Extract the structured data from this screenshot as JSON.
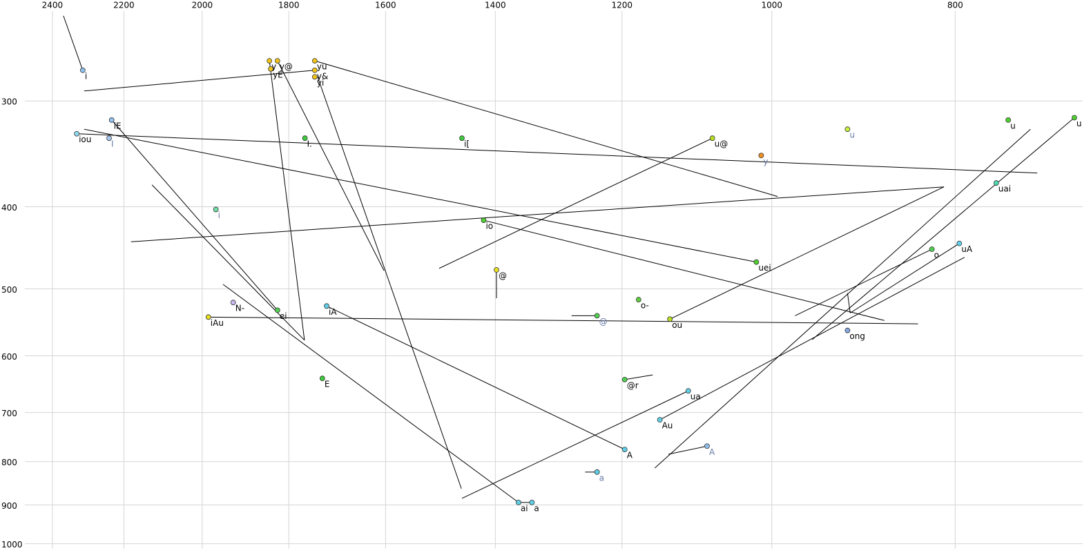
{
  "chart_data": {
    "type": "scatter",
    "xscale": "log",
    "yscale": "log",
    "xlim": [
      2558,
      685
    ],
    "ylim": [
      1014,
      228
    ],
    "xticks": [
      2400,
      2200,
      2000,
      1800,
      1600,
      1400,
      1200,
      1000,
      800
    ],
    "yticks": [
      300,
      400,
      500,
      600,
      700,
      800,
      900,
      1000
    ],
    "grid": true,
    "points": [
      {
        "label": "i",
        "x": 2313,
        "y": 276,
        "color": "#8fc1ee"
      },
      {
        "label": "y",
        "x": 1843,
        "y": 269,
        "color": "#f0c419"
      },
      {
        "label": "y@",
        "x": 1825,
        "y": 269,
        "color": "#f0c419"
      },
      {
        "label": "yE",
        "x": 1840,
        "y": 275,
        "color": "#f0c419"
      },
      {
        "label": "yu",
        "x": 1744,
        "y": 269,
        "color": "#f0c419"
      },
      {
        "label": "y&",
        "x": 1744,
        "y": 276,
        "color": "#f0c419"
      },
      {
        "label": "yi",
        "x": 1744,
        "y": 281,
        "color": "#f0c419"
      },
      {
        "label": "iE",
        "x": 2233,
        "y": 316,
        "color": "#8fc1ee"
      },
      {
        "label": "iou",
        "x": 2330,
        "y": 328,
        "color": "#8fd8ee"
      },
      {
        "label": "I",
        "x": 2240,
        "y": 332,
        "color": "#a8c8f0",
        "label_color": "#6a7aa8"
      },
      {
        "label": "I.",
        "x": 1765,
        "y": 332,
        "color": "#3ccc3c"
      },
      {
        "label": "i[",
        "x": 1458,
        "y": 332,
        "color": "#3ccc3c"
      },
      {
        "label": "u@",
        "x": 1075,
        "y": 332,
        "color": "#b8e020"
      },
      {
        "label": "u",
        "x": 912,
        "y": 324,
        "color": "#c8f040",
        "label_color": "#6a7aa8"
      },
      {
        "label": "y",
        "x": 1013,
        "y": 348,
        "color": "#f09020",
        "label_color": "#6a7aa8"
      },
      {
        "label": "u",
        "x": 750,
        "y": 316,
        "color": "#50d030"
      },
      {
        "label": "u",
        "x": 692,
        "y": 314,
        "color": "#50d030"
      },
      {
        "label": "uai",
        "x": 761,
        "y": 375,
        "color": "#50d8b0"
      },
      {
        "label": "i",
        "x": 1967,
        "y": 403,
        "color": "#70e0a8",
        "label_color": "#6a7aa8"
      },
      {
        "label": "io",
        "x": 1420,
        "y": 415,
        "color": "#50d030"
      },
      {
        "label": "uei",
        "x": 1019,
        "y": 465,
        "color": "#50d030"
      },
      {
        "label": "@",
        "x": 1398,
        "y": 475,
        "color": "#e8e020"
      },
      {
        "label": "o",
        "x": 823,
        "y": 449,
        "color": "#50d050"
      },
      {
        "label": "uA",
        "x": 796,
        "y": 442,
        "color": "#60d0e8"
      },
      {
        "label": "N-",
        "x": 1926,
        "y": 519,
        "color": "#c8b8f0"
      },
      {
        "label": "ei",
        "x": 1825,
        "y": 530,
        "color": "#50d050"
      },
      {
        "label": "iA",
        "x": 1719,
        "y": 524,
        "color": "#60d0e8"
      },
      {
        "label": "o-",
        "x": 1176,
        "y": 515,
        "color": "#60d040"
      },
      {
        "label": "@",
        "x": 1237,
        "y": 538,
        "color": "#50d050",
        "label_color": "#6a7aa8"
      },
      {
        "label": "ou",
        "x": 1132,
        "y": 543,
        "color": "#b8e020"
      },
      {
        "label": "iAu",
        "x": 1985,
        "y": 540,
        "color": "#e8e020"
      },
      {
        "label": "ong",
        "x": 912,
        "y": 560,
        "color": "#88a8e0"
      },
      {
        "label": "E",
        "x": 1728,
        "y": 638,
        "color": "#3ccc3c"
      },
      {
        "label": "@r",
        "x": 1196,
        "y": 640,
        "color": "#50d050"
      },
      {
        "label": "ua",
        "x": 1107,
        "y": 660,
        "color": "#60d0e8"
      },
      {
        "label": "Au",
        "x": 1146,
        "y": 714,
        "color": "#60d0e8"
      },
      {
        "label": "A",
        "x": 1196,
        "y": 774,
        "color": "#60d0e8"
      },
      {
        "label": "A",
        "x": 1082,
        "y": 767,
        "color": "#8fc1ee",
        "label_color": "#6a7aa8"
      },
      {
        "label": "a",
        "x": 1237,
        "y": 823,
        "color": "#60d0e8",
        "label_color": "#6a7aa8"
      },
      {
        "label": "ai",
        "x": 1361,
        "y": 894,
        "color": "#60d0e8"
      },
      {
        "label": "a",
        "x": 1339,
        "y": 894,
        "color": "#60d0e8"
      }
    ],
    "segments": [
      {
        "x": [
          2368,
          2313
        ],
        "y": [
          238,
          276
        ]
      },
      {
        "x": [
          2309,
          1744
        ],
        "y": [
          292,
          276
        ]
      },
      {
        "x": [
          1843,
          1766
        ],
        "y": [
          269,
          575
        ]
      },
      {
        "x": [
          1825,
          1603
        ],
        "y": [
          269,
          476
        ]
      },
      {
        "x": [
          1738,
          1459
        ],
        "y": [
          281,
          861
        ]
      },
      {
        "x": [
          1744,
          993
        ],
        "y": [
          269,
          389
        ]
      },
      {
        "x": [
          2330,
          724
        ],
        "y": [
          328,
          365
        ]
      },
      {
        "x": [
          2309,
          1019
        ],
        "y": [
          324,
          465
        ]
      },
      {
        "x": [
          2233,
          1825
        ],
        "y": [
          316,
          530
        ]
      },
      {
        "x": [
          2126,
          1766
        ],
        "y": [
          377,
          575
        ]
      },
      {
        "x": [
          2181,
          811
        ],
        "y": [
          440,
          379
        ]
      },
      {
        "x": [
          1499,
          1075
        ],
        "y": [
          473,
          332
        ]
      },
      {
        "x": [
          1420,
          872
        ],
        "y": [
          415,
          545
        ]
      },
      {
        "x": [
          1398,
          1398
        ],
        "y": [
          475,
          513
        ]
      },
      {
        "x": [
          1985,
          837
        ],
        "y": [
          540,
          550
        ]
      },
      {
        "x": [
          1950,
          1361
        ],
        "y": [
          494,
          894
        ]
      },
      {
        "x": [
          1719,
          1196
        ],
        "y": [
          524,
          774
        ]
      },
      {
        "x": [
          1276,
          1237
        ],
        "y": [
          538,
          538
        ]
      },
      {
        "x": [
          1132,
          811
        ],
        "y": [
          543,
          379
        ]
      },
      {
        "x": [
          1196,
          1156
        ],
        "y": [
          640,
          632
        ]
      },
      {
        "x": [
          1458,
          1107
        ],
        "y": [
          884,
          660
        ]
      },
      {
        "x": [
          1146,
          791
        ],
        "y": [
          714,
          459
        ]
      },
      {
        "x": [
          1153,
          730
        ],
        "y": [
          814,
          324
        ]
      },
      {
        "x": [
          972,
          823
        ],
        "y": [
          538,
          449
        ]
      },
      {
        "x": [
          952,
          692
        ],
        "y": [
          574,
          314
        ]
      },
      {
        "x": [
          909,
          796
        ],
        "y": [
          534,
          442
        ]
      },
      {
        "x": [
          912,
          909
        ],
        "y": [
          506,
          534
        ]
      },
      {
        "x": [
          1134,
          1082
        ],
        "y": [
          784,
          767
        ]
      },
      {
        "x": [
          1255,
          1237
        ],
        "y": [
          823,
          823
        ]
      },
      {
        "x": [
          1361,
          1339
        ],
        "y": [
          894,
          894
        ]
      }
    ]
  }
}
